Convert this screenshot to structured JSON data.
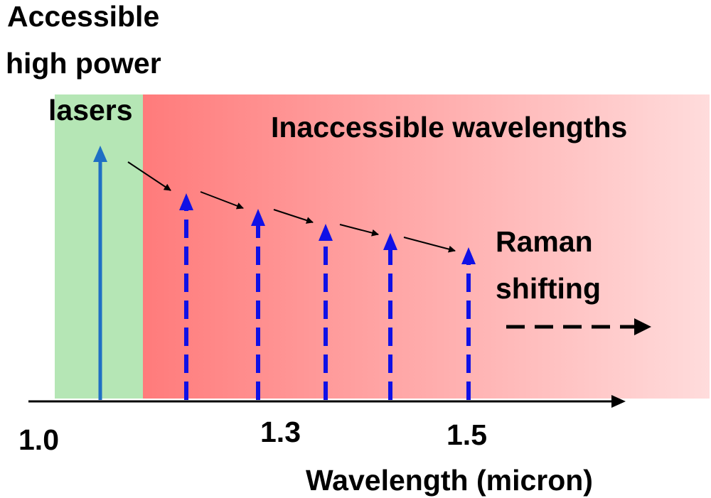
{
  "labels": {
    "accessible_line1": "Accessible",
    "accessible_line2": "high power",
    "accessible_line3": "lasers",
    "inaccessible": "Inaccessible wavelengths",
    "raman_line1": "Raman",
    "raman_line2": "shifting",
    "xaxis": "Wavelength (micron)"
  },
  "ticks": [
    "1.0",
    "1.3",
    "1.5"
  ],
  "colors": {
    "accessible_region": "#b5e6b5",
    "inaccessible_start": "#ff7b7b",
    "inaccessible_end": "#ffdcdc",
    "pump_arrow": "#1f6fc4",
    "raman_arrows": "#1010e6",
    "axis": "#000000"
  }
}
